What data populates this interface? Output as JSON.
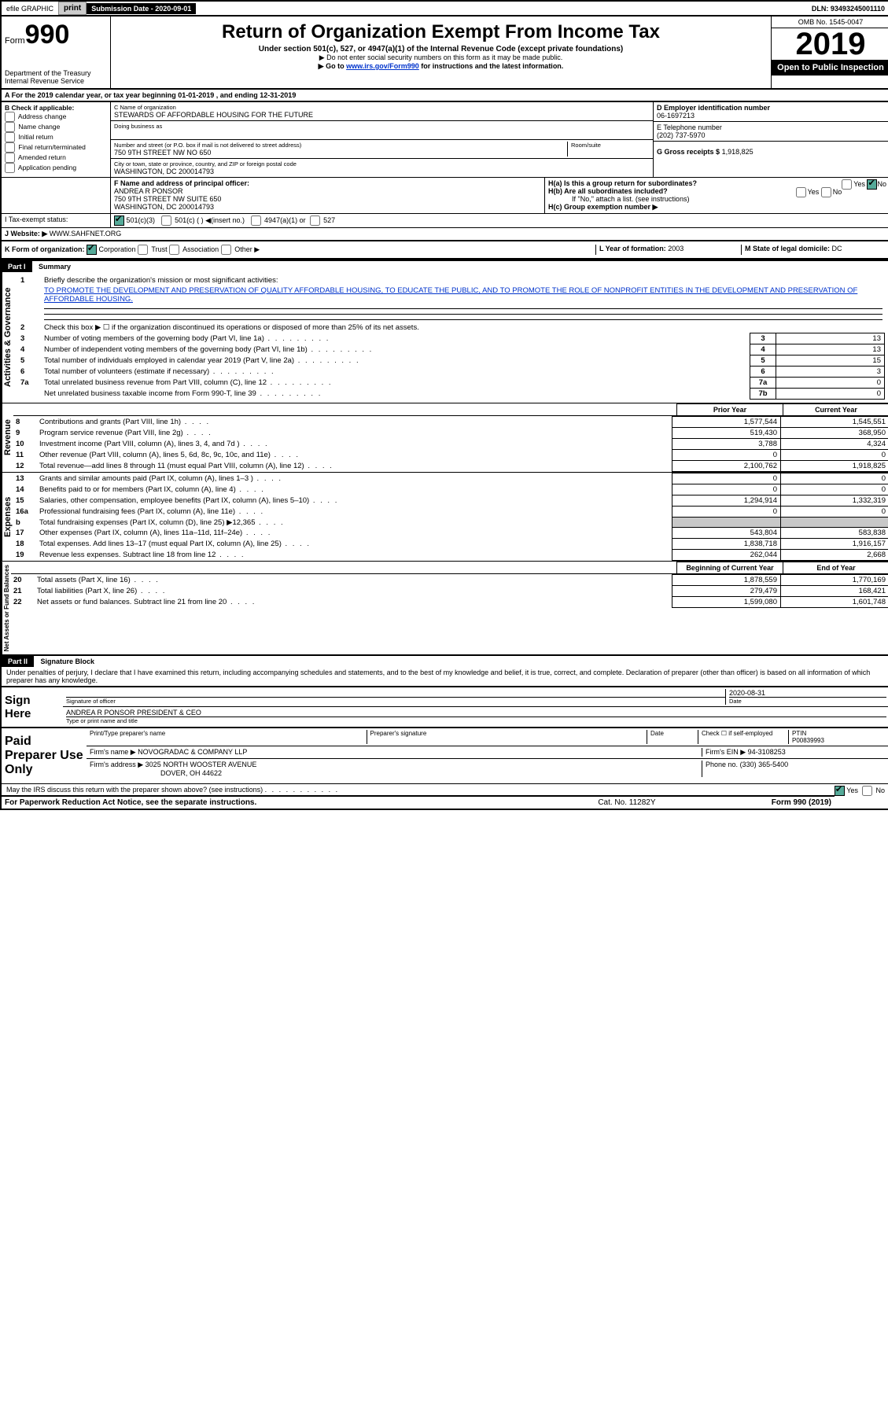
{
  "topbar": {
    "efile": "efile GRAPHIC",
    "print": "print",
    "subdate_label": "Submission Date - 2020-09-01",
    "dln": "DLN: 93493245001110"
  },
  "header": {
    "form_label": "Form",
    "form_num": "990",
    "dept1": "Department of the Treasury",
    "dept2": "Internal Revenue Service",
    "title": "Return of Organization Exempt From Income Tax",
    "subtitle": "Under section 501(c), 527, or 4947(a)(1) of the Internal Revenue Code (except private foundations)",
    "note1": "▶ Do not enter social security numbers on this form as it may be made public.",
    "note2_a": "▶ Go to ",
    "note2_link": "www.irs.gov/Form990",
    "note2_b": " for instructions and the latest information.",
    "omb": "OMB No. 1545-0047",
    "year": "2019",
    "open": "Open to Public Inspection"
  },
  "sectionA": "A For the 2019 calendar year, or tax year beginning 01-01-2019   , and ending 12-31-2019",
  "B": {
    "hdr": "B Check if applicable:",
    "items": [
      "Address change",
      "Name change",
      "Initial return",
      "Final return/terminated",
      "Amended return",
      "Application pending"
    ]
  },
  "C": {
    "name_label": "C Name of organization",
    "name": "STEWARDS OF AFFORDABLE HOUSING FOR THE FUTURE",
    "dba_label": "Doing business as",
    "addr_label": "Number and street (or P.O. box if mail is not delivered to street address)",
    "room_label": "Room/suite",
    "addr": "750 9TH STREET NW NO 650",
    "city_label": "City or town, state or province, country, and ZIP or foreign postal code",
    "city": "WASHINGTON, DC  200014793"
  },
  "D": {
    "label": "D Employer identification number",
    "val": "06-1697213"
  },
  "E": {
    "label": "E Telephone number",
    "val": "(202) 737-5970"
  },
  "G": {
    "label": "G Gross receipts $",
    "val": "1,918,825"
  },
  "F": {
    "label": "F  Name and address of principal officer:",
    "name": "ANDREA R PONSOR",
    "addr1": "750 9TH STREET NW SUITE 650",
    "addr2": "WASHINGTON, DC  200014793"
  },
  "H": {
    "a": "H(a)  Is this a group return for subordinates?",
    "b": "H(b)  Are all subordinates included?",
    "bnote": "If \"No,\" attach a list. (see instructions)",
    "c": "H(c)  Group exemption number ▶",
    "yes": "Yes",
    "no": "No"
  },
  "I": {
    "label": "I   Tax-exempt status:",
    "c3": "501(c)(3)",
    "c": "501(c) (  ) ◀(insert no.)",
    "a4947": "4947(a)(1) or",
    "s527": "527"
  },
  "J": {
    "label": "J   Website: ▶",
    "val": "WWW.SAHFNET.ORG"
  },
  "K": {
    "label": "K Form of organization:",
    "corp": "Corporation",
    "trust": "Trust",
    "assoc": "Association",
    "other": "Other ▶"
  },
  "L": {
    "label": "L Year of formation:",
    "val": "2003"
  },
  "M": {
    "label": "M State of legal domicile:",
    "val": "DC"
  },
  "part1": {
    "tag": "Part I",
    "title": "Summary",
    "q1a": "Briefly describe the organization's mission or most significant activities:",
    "q1b": "TO PROMOTE THE DEVELOPMENT AND PRESERVATION OF QUALITY AFFORDABLE HOUSING, TO EDUCATE THE PUBLIC, AND TO PROMOTE THE ROLE OF NONPROFIT ENTITIES IN THE DEVELOPMENT AND PRESERVATION OF AFFORDABLE HOUSING.",
    "q2": "Check this box ▶ ☐  if the organization discontinued its operations or disposed of more than 25% of its net assets.",
    "lines": [
      {
        "n": "3",
        "t": "Number of voting members of the governing body (Part VI, line 1a)",
        "box": "3",
        "v": "13"
      },
      {
        "n": "4",
        "t": "Number of independent voting members of the governing body (Part VI, line 1b)",
        "box": "4",
        "v": "13"
      },
      {
        "n": "5",
        "t": "Total number of individuals employed in calendar year 2019 (Part V, line 2a)",
        "box": "5",
        "v": "15"
      },
      {
        "n": "6",
        "t": "Total number of volunteers (estimate if necessary)",
        "box": "6",
        "v": "3"
      },
      {
        "n": "7a",
        "t": "Total unrelated business revenue from Part VIII, column (C), line 12",
        "box": "7a",
        "v": "0"
      },
      {
        "n": "",
        "t": "Net unrelated business taxable income from Form 990-T, line 39",
        "box": "7b",
        "v": "0"
      }
    ],
    "sideA": "Activities & Governance",
    "sideR": "Revenue",
    "sideE": "Expenses",
    "sideN": "Net Assets or Fund Balances",
    "priorYear": "Prior Year",
    "currentYear": "Current Year",
    "rev": [
      {
        "n": "8",
        "t": "Contributions and grants (Part VIII, line 1h)",
        "p": "1,577,544",
        "c": "1,545,551"
      },
      {
        "n": "9",
        "t": "Program service revenue (Part VIII, line 2g)",
        "p": "519,430",
        "c": "368,950"
      },
      {
        "n": "10",
        "t": "Investment income (Part VIII, column (A), lines 3, 4, and 7d )",
        "p": "3,788",
        "c": "4,324"
      },
      {
        "n": "11",
        "t": "Other revenue (Part VIII, column (A), lines 5, 6d, 8c, 9c, 10c, and 11e)",
        "p": "0",
        "c": "0"
      },
      {
        "n": "12",
        "t": "Total revenue—add lines 8 through 11 (must equal Part VIII, column (A), line 12)",
        "p": "2,100,762",
        "c": "1,918,825"
      }
    ],
    "exp": [
      {
        "n": "13",
        "t": "Grants and similar amounts paid (Part IX, column (A), lines 1–3 )",
        "p": "0",
        "c": "0"
      },
      {
        "n": "14",
        "t": "Benefits paid to or for members (Part IX, column (A), line 4)",
        "p": "0",
        "c": "0"
      },
      {
        "n": "15",
        "t": "Salaries, other compensation, employee benefits (Part IX, column (A), lines 5–10)",
        "p": "1,294,914",
        "c": "1,332,319"
      },
      {
        "n": "16a",
        "t": "Professional fundraising fees (Part IX, column (A), line 11e)",
        "p": "0",
        "c": "0"
      },
      {
        "n": "b",
        "t": "Total fundraising expenses (Part IX, column (D), line 25) ▶12,365",
        "p": "GRAY",
        "c": "GRAY"
      },
      {
        "n": "17",
        "t": "Other expenses (Part IX, column (A), lines 11a–11d, 11f–24e)",
        "p": "543,804",
        "c": "583,838"
      },
      {
        "n": "18",
        "t": "Total expenses. Add lines 13–17 (must equal Part IX, column (A), line 25)",
        "p": "1,838,718",
        "c": "1,916,157"
      },
      {
        "n": "19",
        "t": "Revenue less expenses. Subtract line 18 from line 12",
        "p": "262,044",
        "c": "2,668"
      }
    ],
    "begYear": "Beginning of Current Year",
    "endYear": "End of Year",
    "net": [
      {
        "n": "20",
        "t": "Total assets (Part X, line 16)",
        "p": "1,878,559",
        "c": "1,770,169"
      },
      {
        "n": "21",
        "t": "Total liabilities (Part X, line 26)",
        "p": "279,479",
        "c": "168,421"
      },
      {
        "n": "22",
        "t": "Net assets or fund balances. Subtract line 21 from line 20",
        "p": "1,599,080",
        "c": "1,601,748"
      }
    ]
  },
  "part2": {
    "tag": "Part II",
    "title": "Signature Block",
    "decl": "Under penalties of perjury, I declare that I have examined this return, including accompanying schedules and statements, and to the best of my knowledge and belief, it is true, correct, and complete. Declaration of preparer (other than officer) is based on all information of which preparer has any knowledge."
  },
  "sign": {
    "here": "Sign Here",
    "sigof": "Signature of officer",
    "date": "Date",
    "dateval": "2020-08-31",
    "name": "ANDREA R PONSOR  PRESIDENT & CEO",
    "type": "Type or print name and title"
  },
  "prep": {
    "label": "Paid Preparer Use Only",
    "ptname": "Print/Type preparer's name",
    "psig": "Preparer's signature",
    "pdate": "Date",
    "check": "Check ☐ if self-employed",
    "ptin_l": "PTIN",
    "ptin": "P00839993",
    "firm_l": "Firm's name    ▶",
    "firm": "NOVOGRADAC & COMPANY LLP",
    "ein_l": "Firm's EIN ▶",
    "ein": "94-3108253",
    "addr_l": "Firm's address ▶",
    "addr1": "3025 NORTH WOOSTER AVENUE",
    "addr2": "DOVER, OH  44622",
    "phone_l": "Phone no.",
    "phone": "(330) 365-5400",
    "discuss": "May the IRS discuss this return with the preparer shown above? (see instructions)"
  },
  "footer": {
    "l": "For Paperwork Reduction Act Notice, see the separate instructions.",
    "c": "Cat. No. 11282Y",
    "r": "Form 990 (2019)"
  }
}
